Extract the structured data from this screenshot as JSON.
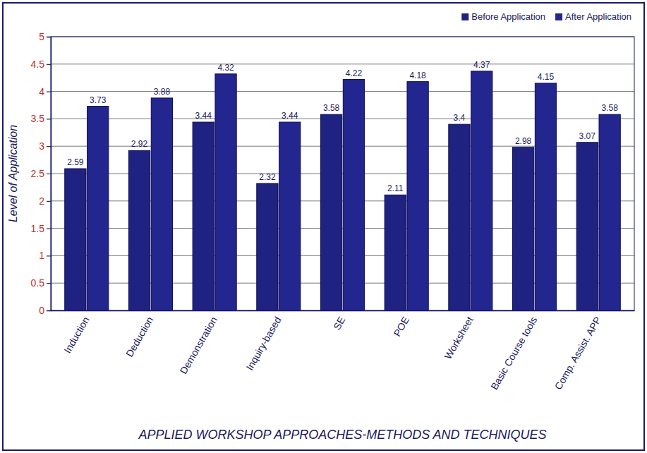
{
  "chart_data": {
    "type": "bar",
    "x_label": "APPLIED WORKSHOP APPROACHES-METHODS AND TECHNIQUES",
    "y_label": "Level of Application",
    "categories": [
      "Induction",
      "Deduction",
      "Demonstration",
      "Inquiry-based",
      "SE",
      "POE",
      "Worksheet",
      "Basic Course tools",
      "Comp. Assist. APP"
    ],
    "series": [
      {
        "name": "Before Application",
        "color": "#1f2280",
        "values": [
          2.59,
          2.92,
          3.44,
          2.32,
          3.58,
          2.11,
          3.4,
          2.98,
          3.07
        ]
      },
      {
        "name": "After Application",
        "color": "#23268f",
        "values": [
          3.73,
          3.88,
          4.32,
          3.44,
          4.22,
          4.18,
          4.37,
          4.15,
          3.58
        ]
      }
    ],
    "ylim": [
      0,
      5
    ],
    "yticks": [
      0,
      0.5,
      1,
      1.5,
      2,
      2.5,
      3,
      3.5,
      4,
      4.5,
      5
    ],
    "grid": true,
    "legend": "top-right",
    "data_labels": true
  }
}
